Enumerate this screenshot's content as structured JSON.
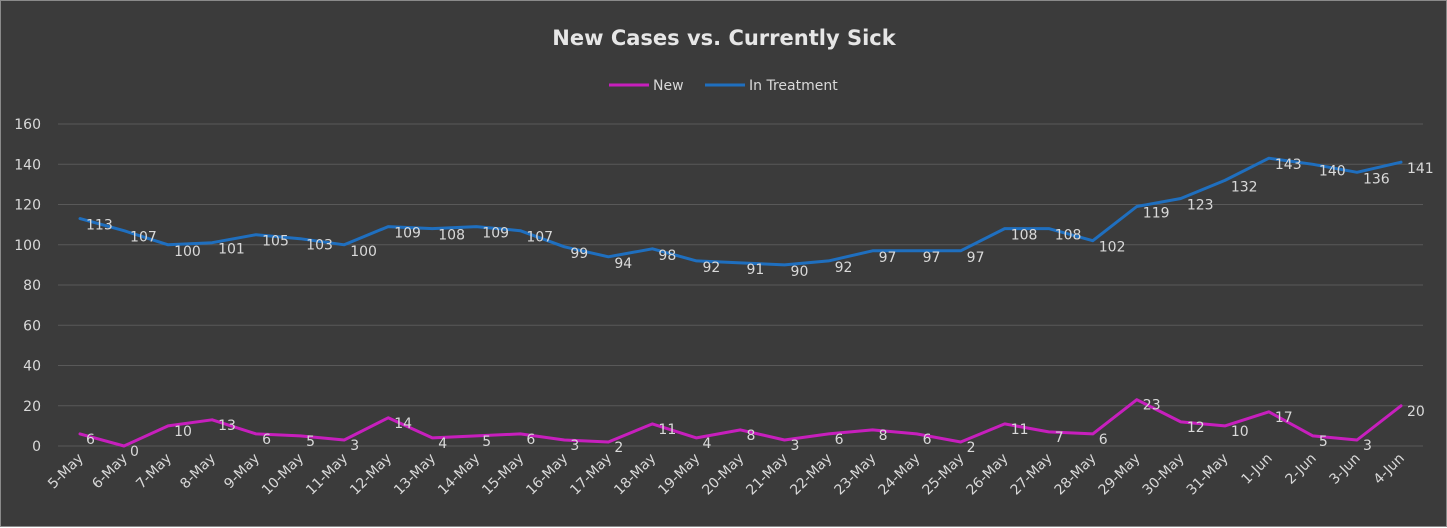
{
  "chart_data": {
    "type": "line",
    "title": "New Cases vs. Currently Sick",
    "xlabel": "",
    "ylabel": "",
    "ylim": [
      0,
      160
    ],
    "yticks": [
      0,
      20,
      40,
      60,
      80,
      100,
      120,
      140,
      160
    ],
    "grid": true,
    "legend_position": "top",
    "categories": [
      "5-May",
      "6-May",
      "7-May",
      "8-May",
      "9-May",
      "10-May",
      "11-May",
      "12-May",
      "13-May",
      "14-May",
      "15-May",
      "16-May",
      "17-May",
      "18-May",
      "19-May",
      "20-May",
      "21-May",
      "22-May",
      "23-May",
      "24-May",
      "25-May",
      "26-May",
      "27-May",
      "28-May",
      "29-May",
      "30-May",
      "31-May",
      "1-Jun",
      "2-Jun",
      "3-Jun",
      "4-Jun"
    ],
    "series": [
      {
        "name": "New",
        "color": "#c71fbd",
        "values": [
          6,
          0,
          10,
          13,
          6,
          5,
          3,
          14,
          4,
          5,
          6,
          3,
          2,
          11,
          4,
          8,
          3,
          6,
          8,
          6,
          2,
          11,
          7,
          6,
          23,
          12,
          10,
          17,
          5,
          3,
          20
        ],
        "labels": [
          "6",
          "0",
          "10",
          "13",
          "6",
          "5",
          "3",
          "14",
          "4",
          "5",
          "6",
          "3",
          "2",
          "11",
          "4",
          "8",
          "3",
          "6",
          "8",
          "6",
          "2",
          "11",
          "7",
          "6",
          "23",
          "12",
          "10",
          "17",
          "5",
          "3",
          "20"
        ]
      },
      {
        "name": "In Treatment",
        "color": "#1f6fbf",
        "values": [
          113,
          107,
          100,
          101,
          105,
          103,
          100,
          109,
          108,
          109,
          107,
          99,
          94,
          98,
          92,
          91,
          90,
          92,
          97,
          97,
          97,
          108,
          108,
          102,
          119,
          123,
          132,
          143,
          140,
          136,
          141
        ],
        "labels": [
          "113",
          "107",
          "100",
          "101",
          "105",
          "103",
          "100",
          "109",
          "108",
          "109",
          "107",
          "99",
          "94",
          "98",
          "92",
          "91",
          "90",
          "92",
          "97",
          "97",
          "97",
          "108",
          "108",
          "102",
          "119",
          "123",
          "132",
          "143",
          "140",
          "136",
          "141"
        ]
      }
    ],
    "colors": {
      "background": "#3b3b3b",
      "gridline": "#595959",
      "text": "#d9d9d9"
    }
  }
}
